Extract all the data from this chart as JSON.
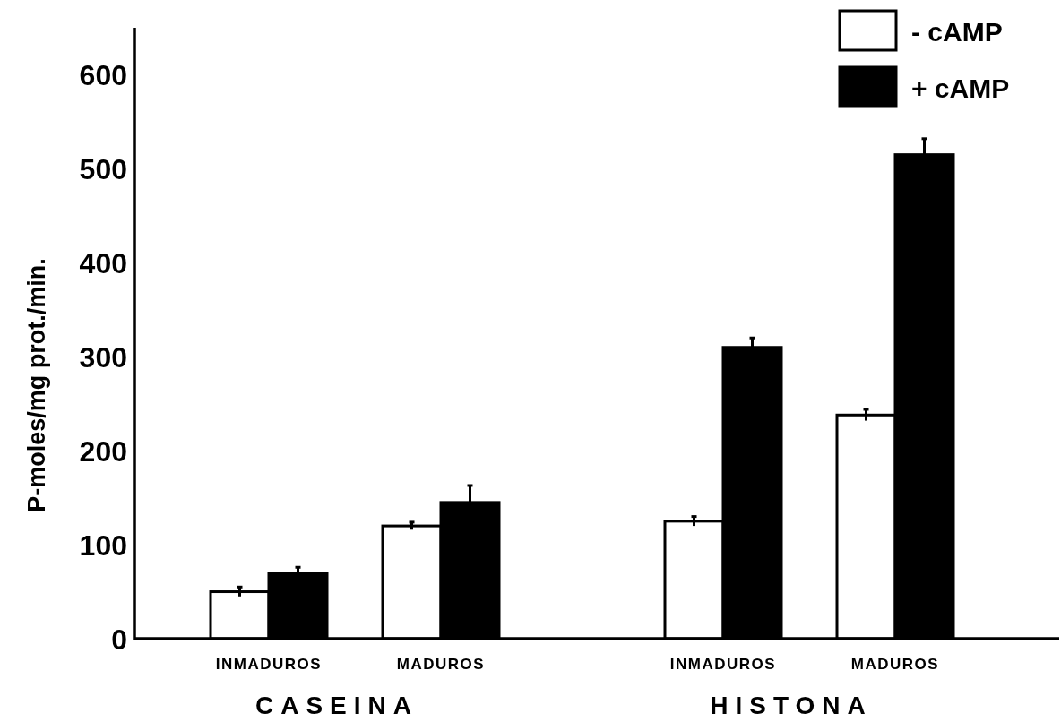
{
  "chart_data": {
    "type": "bar",
    "ylabel": "P-moles/mg prot./min.",
    "categories": [
      "INMADUROS",
      "MADUROS",
      "INMADUROS",
      "MADUROS"
    ],
    "series": [
      {
        "name": "- cAMP",
        "color": "#ffffff",
        "values": [
          50,
          120,
          125,
          238
        ],
        "errors": [
          5,
          4,
          5,
          6
        ]
      },
      {
        "name": "+ cAMP",
        "color": "#000000",
        "values": [
          70,
          145,
          310,
          515
        ],
        "errors": [
          6,
          18,
          10,
          17
        ]
      }
    ],
    "ylim": [
      0,
      650
    ],
    "yticks": [
      0,
      100,
      200,
      300,
      400,
      500,
      600
    ],
    "legend": "top right",
    "annotations": [
      "CASEINA",
      "HISTONA"
    ]
  }
}
